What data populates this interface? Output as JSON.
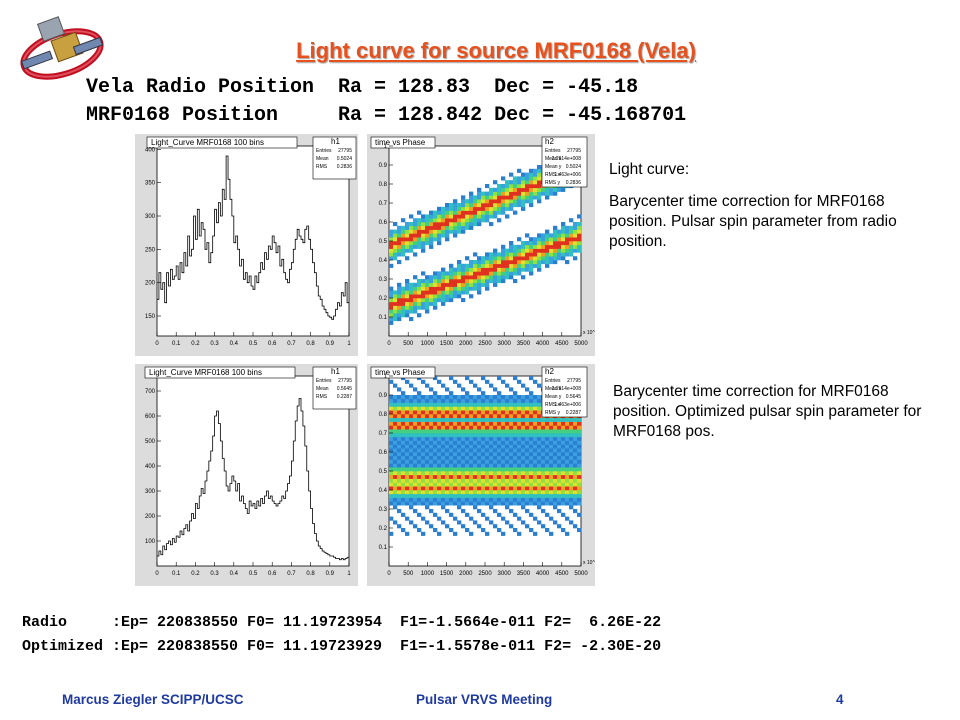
{
  "slide": {
    "title": "Light curve for source MRF0168 (Vela)",
    "positions": [
      "Vela Radio Position  Ra = 128.83  Dec = -45.18",
      "MRF0168 Position     Ra = 128.842 Dec = -45.168701"
    ],
    "notes": [
      "Light curve:",
      "Barycenter time correction for MRF0168 position. Pulsar spin parameter from radio position.",
      "Barycenter time correction for MRF0168 position. Optimized pulsar spin parameter for MRF0168 pos."
    ],
    "params": [
      "Radio     :Ep= 220838550 F0= 11.19723954  F1=-1.5664e-011 F2=  6.26E-22",
      "Optimized :Ep= 220838550 F0= 11.19723929  F1=-1.5578e-011 F2= -2.30E-20"
    ],
    "footer": {
      "left": "Marcus Ziegler SCIPP/UCSC",
      "center": "Pulsar VRVS Meeting",
      "page": "4"
    }
  },
  "colors": {
    "title": "#e8501c",
    "footer": "#1f3aa0",
    "histogram_line": "#000000"
  },
  "icons": {
    "logo": "satellite-logo-icon"
  },
  "chart_data": [
    {
      "type": "line",
      "title": "Light_Curve MRF0168 100 bins",
      "legend_title": "h1",
      "stats": [
        [
          "Entries",
          "27795"
        ],
        [
          "Mean",
          "0.5024"
        ],
        [
          "RMS",
          "0.2836"
        ]
      ],
      "x": [
        0.005,
        0.015,
        0.025,
        0.035,
        0.045,
        0.055,
        0.065,
        0.075,
        0.085,
        0.095,
        0.105,
        0.115,
        0.125,
        0.135,
        0.145,
        0.155,
        0.165,
        0.175,
        0.185,
        0.195,
        0.205,
        0.215,
        0.225,
        0.235,
        0.245,
        0.255,
        0.265,
        0.275,
        0.285,
        0.295,
        0.305,
        0.315,
        0.325,
        0.335,
        0.345,
        0.355,
        0.365,
        0.375,
        0.385,
        0.395,
        0.405,
        0.415,
        0.425,
        0.435,
        0.445,
        0.455,
        0.465,
        0.475,
        0.485,
        0.495,
        0.505,
        0.515,
        0.525,
        0.535,
        0.545,
        0.555,
        0.565,
        0.575,
        0.585,
        0.595,
        0.605,
        0.615,
        0.625,
        0.635,
        0.645,
        0.655,
        0.665,
        0.675,
        0.685,
        0.695,
        0.705,
        0.715,
        0.725,
        0.735,
        0.745,
        0.755,
        0.765,
        0.775,
        0.785,
        0.795,
        0.805,
        0.815,
        0.825,
        0.835,
        0.845,
        0.855,
        0.865,
        0.875,
        0.885,
        0.895,
        0.905,
        0.915,
        0.925,
        0.935,
        0.945,
        0.955,
        0.965,
        0.975,
        0.985,
        0.995
      ],
      "values": [
        175,
        215,
        190,
        200,
        170,
        215,
        195,
        220,
        205,
        210,
        225,
        205,
        230,
        215,
        245,
        225,
        270,
        240,
        250,
        300,
        265,
        310,
        270,
        290,
        280,
        250,
        260,
        230,
        245,
        270,
        310,
        290,
        320,
        300,
        340,
        325,
        390,
        355,
        325,
        300,
        260,
        270,
        250,
        225,
        235,
        205,
        215,
        200,
        210,
        195,
        190,
        210,
        200,
        215,
        230,
        220,
        245,
        235,
        255,
        250,
        270,
        260,
        245,
        255,
        225,
        235,
        215,
        205,
        200,
        220,
        230,
        250,
        265,
        280,
        270,
        265,
        260,
        280,
        285,
        265,
        250,
        230,
        215,
        195,
        180,
        175,
        165,
        160,
        155,
        150,
        148,
        145,
        150,
        160,
        170,
        165,
        185,
        180,
        200,
        170
      ],
      "xlim": [
        0,
        1
      ],
      "ylim": [
        120,
        405
      ],
      "xticks": [
        "0",
        "0.1",
        "0.2",
        "0.3",
        "0.4",
        "0.5",
        "0.6",
        "0.7",
        "0.8",
        "0.9",
        "1"
      ],
      "yticks": [
        "150",
        "200",
        "250",
        "300",
        "350",
        "400"
      ]
    },
    {
      "type": "heatmap",
      "title": "time vs Phase",
      "legend_title": "h2",
      "stats": [
        [
          "Entries",
          "27795"
        ],
        [
          "Mean x",
          "2.2614e+008"
        ],
        [
          "Mean y",
          "0.5024"
        ],
        [
          "RMS x",
          "1.463e+006"
        ],
        [
          "RMS y",
          "0.2836"
        ]
      ],
      "xlim": [
        0,
        5000
      ],
      "ylim": [
        0,
        1
      ],
      "x_multiplier": "x 10^3",
      "xticks": [
        "0",
        "500",
        "1000",
        "1500",
        "2000",
        "2500",
        "3000",
        "3500",
        "4000",
        "4500",
        "5000"
      ],
      "yticks": [
        "0.1",
        "0.2",
        "0.3",
        "0.4",
        "0.5",
        "0.6",
        "0.7",
        "0.8",
        "0.9",
        "1"
      ]
    },
    {
      "type": "line",
      "title": "Light_Curve MRF0168 100 bins",
      "legend_title": "h1",
      "stats": [
        [
          "Entries",
          "27795"
        ],
        [
          "Mean",
          "0.5645"
        ],
        [
          "RMS",
          "0.2287"
        ]
      ],
      "x": [
        0.005,
        0.015,
        0.025,
        0.035,
        0.045,
        0.055,
        0.065,
        0.075,
        0.085,
        0.095,
        0.105,
        0.115,
        0.125,
        0.135,
        0.145,
        0.155,
        0.165,
        0.175,
        0.185,
        0.195,
        0.205,
        0.215,
        0.225,
        0.235,
        0.245,
        0.255,
        0.265,
        0.275,
        0.285,
        0.295,
        0.305,
        0.315,
        0.325,
        0.335,
        0.345,
        0.355,
        0.365,
        0.375,
        0.385,
        0.395,
        0.405,
        0.415,
        0.425,
        0.435,
        0.445,
        0.455,
        0.465,
        0.475,
        0.485,
        0.495,
        0.505,
        0.515,
        0.525,
        0.535,
        0.545,
        0.555,
        0.565,
        0.575,
        0.585,
        0.595,
        0.605,
        0.615,
        0.625,
        0.635,
        0.645,
        0.655,
        0.665,
        0.675,
        0.685,
        0.695,
        0.705,
        0.715,
        0.725,
        0.735,
        0.745,
        0.755,
        0.765,
        0.775,
        0.785,
        0.795,
        0.805,
        0.815,
        0.825,
        0.835,
        0.845,
        0.855,
        0.865,
        0.875,
        0.885,
        0.895,
        0.905,
        0.915,
        0.925,
        0.935,
        0.945,
        0.955,
        0.965,
        0.975,
        0.985,
        0.995
      ],
      "values": [
        40,
        60,
        45,
        80,
        65,
        90,
        100,
        85,
        110,
        95,
        120,
        115,
        140,
        125,
        150,
        165,
        140,
        180,
        210,
        190,
        250,
        230,
        280,
        310,
        290,
        340,
        380,
        420,
        460,
        520,
        600,
        620,
        570,
        500,
        430,
        380,
        320,
        300,
        330,
        360,
        340,
        300,
        330,
        260,
        280,
        250,
        230,
        210,
        260,
        240,
        250,
        230,
        260,
        240,
        270,
        250,
        280,
        300,
        270,
        280,
        260,
        250,
        240,
        250,
        260,
        280,
        270,
        300,
        330,
        360,
        420,
        500,
        580,
        640,
        670,
        620,
        560,
        480,
        380,
        300,
        230,
        170,
        130,
        100,
        80,
        70,
        60,
        55,
        50,
        45,
        40,
        40,
        35,
        30,
        30,
        25,
        30,
        25,
        30,
        35
      ],
      "xlim": [
        0,
        1
      ],
      "ylim": [
        0,
        760
      ],
      "xticks": [
        "0",
        "0.1",
        "0.2",
        "0.3",
        "0.4",
        "0.5",
        "0.6",
        "0.7",
        "0.8",
        "0.9",
        "1"
      ],
      "yticks": [
        "100",
        "200",
        "300",
        "400",
        "500",
        "600",
        "700"
      ]
    },
    {
      "type": "heatmap",
      "title": "time vs Phase",
      "legend_title": "h2",
      "stats": [
        [
          "Entries",
          "27795"
        ],
        [
          "Mean x",
          "2.2614e+008"
        ],
        [
          "Mean y",
          "0.5645"
        ],
        [
          "RMS x",
          "1.463e+006"
        ],
        [
          "RMS y",
          "0.2287"
        ]
      ],
      "xlim": [
        0,
        5000
      ],
      "ylim": [
        0,
        1
      ],
      "x_multiplier": "x 10^3",
      "xticks": [
        "0",
        "500",
        "1000",
        "1500",
        "2000",
        "2500",
        "3000",
        "3500",
        "4000",
        "4500",
        "5000"
      ],
      "yticks": [
        "0.1",
        "0.2",
        "0.3",
        "0.4",
        "0.5",
        "0.6",
        "0.7",
        "0.8",
        "0.9",
        "1"
      ]
    }
  ]
}
